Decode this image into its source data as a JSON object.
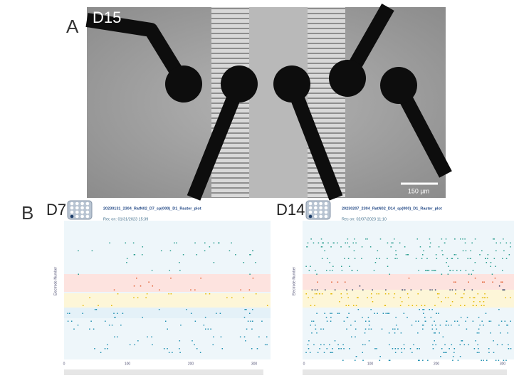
{
  "panel_a": {
    "label": "A",
    "day": "D15",
    "scale_bar": "150 µm"
  },
  "panel_b": {
    "label": "B",
    "plots": [
      {
        "day": "D7",
        "title": "20230131_2304_RatN02_D7_sp(000)_D1_Raster_plot",
        "recorded": "Rec on: 01/31/2023 15:39",
        "y_axis_label": "Electrode Number",
        "x_ticks": [
          "0",
          "100",
          "200",
          "300"
        ]
      },
      {
        "day": "D14",
        "title": "20230207_2304_RatN02_D14_sp(000)_D1_Raster_plot",
        "recorded": "Rec on: 02/07/2023 11:10",
        "y_axis_label": "Electrode Number",
        "x_ticks": [
          "0",
          "100",
          "200",
          "300"
        ]
      }
    ]
  }
}
